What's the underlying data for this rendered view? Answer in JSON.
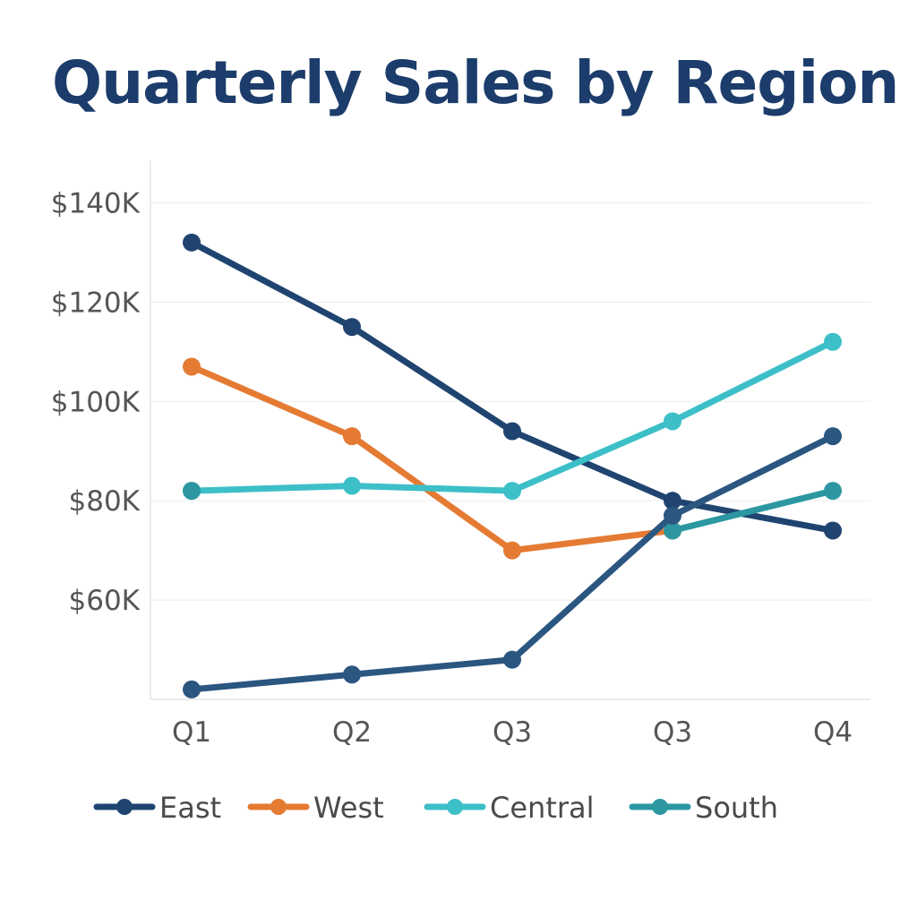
{
  "chart_data": {
    "type": "line",
    "title": "Quarterly Sales by Region",
    "xlabel": "",
    "ylabel": "",
    "categories": [
      "Q1",
      "Q2",
      "Q3",
      "Q3",
      "Q4"
    ],
    "y_ticks": [
      "$60K",
      "$80K",
      "$100K",
      "$120K",
      "$140K"
    ],
    "y_tick_values": [
      60,
      80,
      100,
      120,
      140
    ],
    "ylim": [
      40,
      150
    ],
    "grid": true,
    "legend_position": "bottom",
    "series": [
      {
        "name": "East",
        "color": "#1f4470",
        "values": [
          132,
          115,
          94,
          80,
          74
        ]
      },
      {
        "name": "West",
        "color": "#e57a33",
        "values": [
          107,
          93,
          70,
          74,
          null
        ]
      },
      {
        "name": "Central",
        "color": "#3dbfc8",
        "values": [
          82,
          83,
          82,
          96,
          112
        ]
      },
      {
        "name": "South",
        "color": "#2c97a1",
        "values": [
          82,
          null,
          null,
          74,
          82
        ]
      },
      {
        "name": "",
        "color": "#2a5680",
        "values": [
          42,
          45,
          48,
          77,
          93
        ]
      }
    ]
  }
}
